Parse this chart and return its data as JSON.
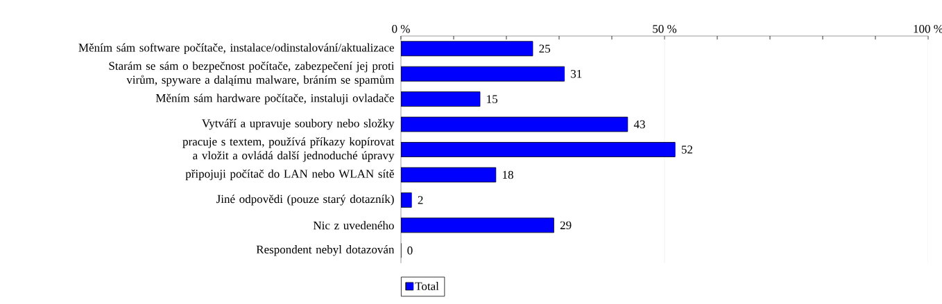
{
  "chart_data": {
    "type": "bar",
    "orientation": "horizontal",
    "categories": [
      "Měním sám software počítače, instalace/odinstalování/aktualizace",
      "Starám se sám o bezpečnost počítače, zabezpečení jej proti virům, spyware a daląímu malware, bráním se spamům",
      "Měním sám hardware počítače, instaluji ovladače",
      "Vytváří a upravuje soubory nebo složky",
      "pracuje s textem, používá příkazy kopírovat a vložit a ovládá další jednoduché úpravy",
      "připojuji počítač do LAN nebo WLAN sítě",
      "Jiné odpovědi (pouze starý dotazník)",
      "Nic z uvedeného",
      "Respondent nebyl dotazován"
    ],
    "series": [
      {
        "name": "Total",
        "color": "#0000ff",
        "values": [
          25,
          31,
          15,
          43,
          52,
          18,
          2,
          29,
          0
        ]
      }
    ],
    "xlim": [
      0,
      100
    ],
    "xticks": [
      {
        "value": 0,
        "label": "0 %"
      },
      {
        "value": 10,
        "label": null
      },
      {
        "value": 20,
        "label": null
      },
      {
        "value": 30,
        "label": null
      },
      {
        "value": 40,
        "label": null
      },
      {
        "value": 50,
        "label": "50 %"
      },
      {
        "value": 60,
        "label": null
      },
      {
        "value": 70,
        "label": null
      },
      {
        "value": 80,
        "label": null
      },
      {
        "value": 90,
        "label": null
      },
      {
        "value": 100,
        "label": "100 %"
      }
    ],
    "grid": "x",
    "data_labels": true,
    "legend": "bottom"
  }
}
